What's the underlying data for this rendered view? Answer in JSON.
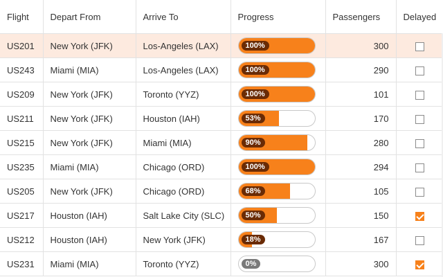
{
  "columns": {
    "flight": "Flight",
    "depart": "Depart From",
    "arrive": "Arrive To",
    "progress": "Progress",
    "passengers": "Passengers",
    "delayed": "Delayed"
  },
  "colors": {
    "accent": "#f7811b",
    "selected_row": "#fdeadf",
    "pill_dark": "#6a2b05"
  },
  "rows": [
    {
      "flight": "US201",
      "depart": "New York (JFK)",
      "arrive": "Los-Angeles (LAX)",
      "progress": 100,
      "progress_label": "100%",
      "passengers": "300",
      "delayed": false,
      "selected": true
    },
    {
      "flight": "US243",
      "depart": "Miami (MIA)",
      "arrive": "Los-Angeles (LAX)",
      "progress": 100,
      "progress_label": "100%",
      "passengers": "290",
      "delayed": false,
      "selected": false
    },
    {
      "flight": "US209",
      "depart": "New York (JFK)",
      "arrive": "Toronto (YYZ)",
      "progress": 100,
      "progress_label": "100%",
      "passengers": "101",
      "delayed": false,
      "selected": false
    },
    {
      "flight": "US211",
      "depart": "New York (JFK)",
      "arrive": "Houston (IAH)",
      "progress": 53,
      "progress_label": "53%",
      "passengers": "170",
      "delayed": false,
      "selected": false
    },
    {
      "flight": "US215",
      "depart": "New York (JFK)",
      "arrive": "Miami (MIA)",
      "progress": 90,
      "progress_label": "90%",
      "passengers": "280",
      "delayed": false,
      "selected": false
    },
    {
      "flight": "US235",
      "depart": "Miami (MIA)",
      "arrive": "Chicago (ORD)",
      "progress": 100,
      "progress_label": "100%",
      "passengers": "294",
      "delayed": false,
      "selected": false
    },
    {
      "flight": "US205",
      "depart": "New York (JFK)",
      "arrive": "Chicago (ORD)",
      "progress": 68,
      "progress_label": "68%",
      "passengers": "105",
      "delayed": false,
      "selected": false
    },
    {
      "flight": "US217",
      "depart": "Houston (IAH)",
      "arrive": "Salt Lake City (SLC)",
      "progress": 50,
      "progress_label": "50%",
      "passengers": "150",
      "delayed": true,
      "selected": false
    },
    {
      "flight": "US212",
      "depart": "Houston (IAH)",
      "arrive": "New York (JFK)",
      "progress": 18,
      "progress_label": "18%",
      "passengers": "167",
      "delayed": false,
      "selected": false
    },
    {
      "flight": "US231",
      "depart": "Miami (MIA)",
      "arrive": "Toronto (YYZ)",
      "progress": 0,
      "progress_label": "0%",
      "passengers": "300",
      "delayed": true,
      "selected": false
    }
  ]
}
